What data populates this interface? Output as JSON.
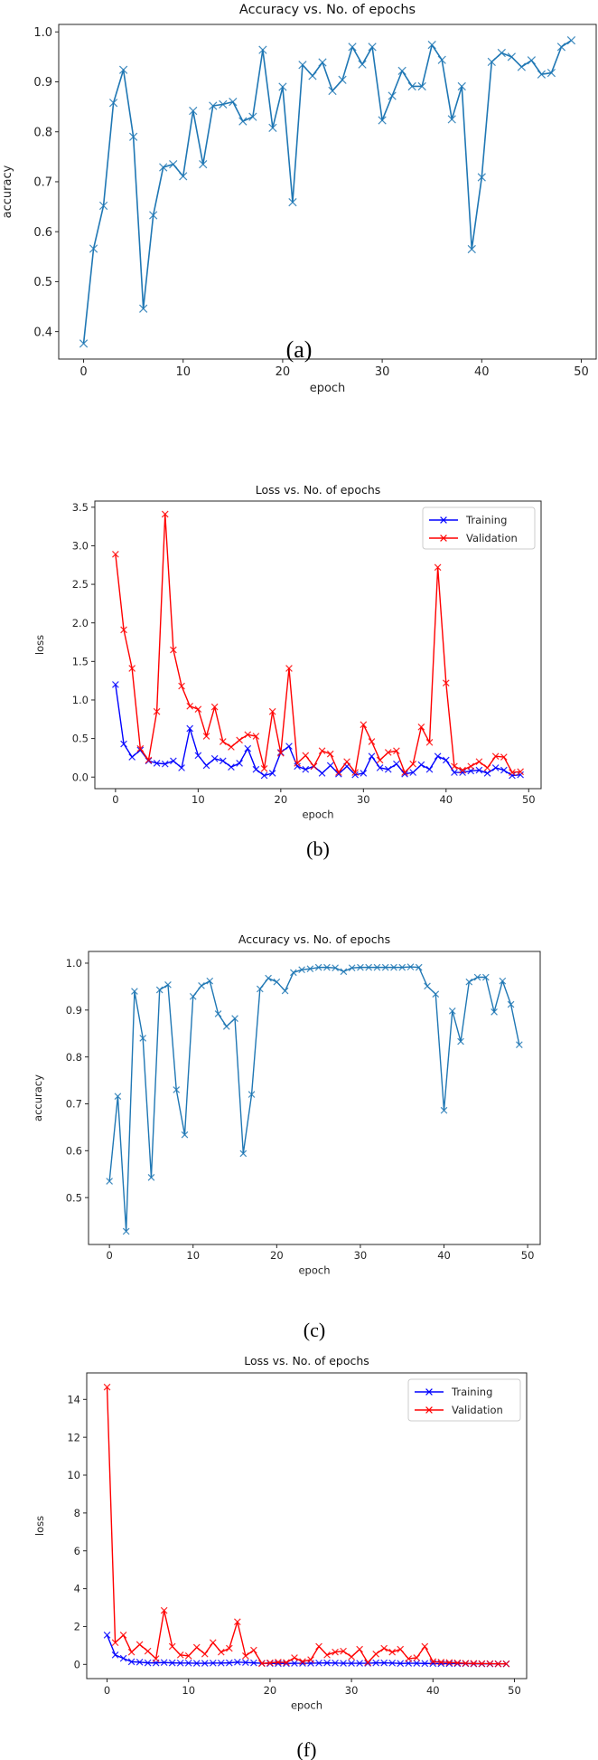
{
  "figure": {
    "captions": [
      "(a)",
      "(b)",
      "(c)",
      "(f)"
    ]
  },
  "chart_data": [
    {
      "id": "a",
      "type": "line",
      "title": "Accuracy vs. No. of epochs",
      "xlabel": "epoch",
      "ylabel": "accuracy",
      "caption": "(a)",
      "xlim": [
        -2.5,
        51.5
      ],
      "ylim": [
        0.345,
        1.015
      ],
      "xticks": [
        0,
        10,
        20,
        30,
        40,
        50
      ],
      "yticks": [
        0.4,
        0.5,
        0.6,
        0.7,
        0.8,
        0.9,
        1.0
      ],
      "ytick_labels": [
        "0.4",
        "0.5",
        "0.6",
        "0.7",
        "0.8",
        "0.9",
        "1.0"
      ],
      "grid": false,
      "legend": null,
      "series": [
        {
          "name": "accuracy",
          "color": "#1f77b4",
          "marker": "x",
          "x": [
            0,
            1,
            2,
            3,
            4,
            5,
            6,
            7,
            8,
            9,
            10,
            11,
            12,
            13,
            14,
            15,
            16,
            17,
            18,
            19,
            20,
            21,
            22,
            23,
            24,
            25,
            26,
            27,
            28,
            29,
            30,
            31,
            32,
            33,
            34,
            35,
            36,
            37,
            38,
            39,
            40,
            41,
            42,
            43,
            44,
            45,
            46,
            47,
            48,
            49
          ],
          "values": [
            0.376,
            0.566,
            0.652,
            0.858,
            0.924,
            0.79,
            0.446,
            0.633,
            0.729,
            0.735,
            0.711,
            0.842,
            0.735,
            0.852,
            0.855,
            0.86,
            0.821,
            0.83,
            0.964,
            0.808,
            0.89,
            0.659,
            0.934,
            0.912,
            0.939,
            0.882,
            0.904,
            0.97,
            0.935,
            0.97,
            0.823,
            0.872,
            0.922,
            0.891,
            0.891,
            0.974,
            0.944,
            0.825,
            0.891,
            0.565,
            0.709,
            0.94,
            0.958,
            0.95,
            0.93,
            0.943,
            0.915,
            0.918,
            0.97,
            0.983
          ]
        }
      ]
    },
    {
      "id": "b",
      "type": "line",
      "title": "Loss vs. No. of epochs",
      "xlabel": "epoch",
      "ylabel": "loss",
      "caption": "(b)",
      "xlim": [
        -2.5,
        51.5
      ],
      "ylim": [
        -0.15,
        3.58
      ],
      "xticks": [
        0,
        10,
        20,
        30,
        40,
        50
      ],
      "yticks": [
        0.0,
        0.5,
        1.0,
        1.5,
        2.0,
        2.5,
        3.0,
        3.5
      ],
      "ytick_labels": [
        "0.0",
        "0.5",
        "1.0",
        "1.5",
        "2.0",
        "2.5",
        "3.0",
        "3.5"
      ],
      "grid": false,
      "legend": "top-right",
      "series": [
        {
          "name": "Training",
          "color": "#0000ff",
          "marker": "x",
          "x": [
            0,
            1,
            2,
            3,
            4,
            5,
            6,
            7,
            8,
            9,
            10,
            11,
            12,
            13,
            14,
            15,
            16,
            17,
            18,
            19,
            20,
            21,
            22,
            23,
            24,
            25,
            26,
            27,
            28,
            29,
            30,
            31,
            32,
            33,
            34,
            35,
            36,
            37,
            38,
            39,
            40,
            41,
            42,
            43,
            44,
            45,
            46,
            47,
            48,
            49
          ],
          "values": [
            1.2,
            0.43,
            0.26,
            0.35,
            0.21,
            0.18,
            0.17,
            0.21,
            0.12,
            0.63,
            0.28,
            0.15,
            0.24,
            0.21,
            0.13,
            0.18,
            0.37,
            0.1,
            0.02,
            0.05,
            0.32,
            0.4,
            0.14,
            0.1,
            0.14,
            0.05,
            0.15,
            0.04,
            0.14,
            0.03,
            0.05,
            0.27,
            0.12,
            0.1,
            0.17,
            0.04,
            0.06,
            0.16,
            0.1,
            0.27,
            0.22,
            0.06,
            0.06,
            0.08,
            0.09,
            0.05,
            0.12,
            0.09,
            0.02,
            0.03
          ]
        },
        {
          "name": "Validation",
          "color": "#ff0000",
          "marker": "x",
          "x": [
            0,
            1,
            2,
            3,
            4,
            5,
            6,
            7,
            8,
            9,
            10,
            11,
            12,
            13,
            14,
            15,
            16,
            17,
            18,
            19,
            20,
            21,
            22,
            23,
            24,
            25,
            26,
            27,
            28,
            29,
            30,
            31,
            32,
            33,
            34,
            35,
            36,
            37,
            38,
            39,
            40,
            41,
            42,
            43,
            44,
            45,
            46,
            47,
            48,
            49
          ],
          "values": [
            2.89,
            1.91,
            1.41,
            0.37,
            0.22,
            0.85,
            3.41,
            1.65,
            1.18,
            0.92,
            0.88,
            0.53,
            0.91,
            0.46,
            0.39,
            0.48,
            0.55,
            0.53,
            0.11,
            0.85,
            0.31,
            1.41,
            0.18,
            0.28,
            0.14,
            0.34,
            0.3,
            0.06,
            0.2,
            0.06,
            0.68,
            0.46,
            0.22,
            0.32,
            0.34,
            0.06,
            0.17,
            0.65,
            0.45,
            2.72,
            1.22,
            0.14,
            0.09,
            0.14,
            0.2,
            0.12,
            0.27,
            0.26,
            0.06,
            0.07
          ]
        }
      ]
    },
    {
      "id": "c",
      "type": "line",
      "title": "Accuracy vs. No. of epochs",
      "xlabel": "epoch",
      "ylabel": "accuracy",
      "caption": "(c)",
      "xlim": [
        -2.5,
        51.5
      ],
      "ylim": [
        0.4,
        1.025
      ],
      "xticks": [
        0,
        10,
        20,
        30,
        40,
        50
      ],
      "yticks": [
        0.5,
        0.6,
        0.7,
        0.8,
        0.9,
        1.0
      ],
      "ytick_labels": [
        "0.5",
        "0.6",
        "0.7",
        "0.8",
        "0.9",
        "1.0"
      ],
      "grid": false,
      "legend": null,
      "series": [
        {
          "name": "accuracy",
          "color": "#1f77b4",
          "marker": "x",
          "x": [
            0,
            1,
            2,
            3,
            4,
            5,
            6,
            7,
            8,
            9,
            10,
            11,
            12,
            13,
            14,
            15,
            16,
            17,
            18,
            19,
            20,
            21,
            22,
            23,
            24,
            25,
            26,
            27,
            28,
            29,
            30,
            31,
            32,
            33,
            34,
            35,
            36,
            37,
            38,
            39,
            40,
            41,
            42,
            43,
            44,
            45,
            46,
            47,
            48,
            49
          ],
          "values": [
            0.535,
            0.716,
            0.428,
            0.94,
            0.84,
            0.543,
            0.943,
            0.954,
            0.73,
            0.634,
            0.929,
            0.952,
            0.962,
            0.892,
            0.865,
            0.882,
            0.594,
            0.72,
            0.945,
            0.968,
            0.96,
            0.941,
            0.98,
            0.986,
            0.988,
            0.991,
            0.991,
            0.99,
            0.982,
            0.99,
            0.991,
            0.991,
            0.991,
            0.991,
            0.991,
            0.991,
            0.992,
            0.991,
            0.951,
            0.934,
            0.686,
            0.898,
            0.833,
            0.96,
            0.97,
            0.97,
            0.896,
            0.962,
            0.912,
            0.826
          ]
        }
      ]
    },
    {
      "id": "f",
      "type": "line",
      "title": "Loss vs. No. of epochs",
      "xlabel": "epoch",
      "ylabel": "loss",
      "caption": "(f)",
      "xlim": [
        -2.5,
        51.5
      ],
      "ylim": [
        -0.75,
        15.4
      ],
      "xticks": [
        0,
        10,
        20,
        30,
        40,
        50
      ],
      "yticks": [
        0,
        2,
        4,
        6,
        8,
        10,
        12,
        14
      ],
      "ytick_labels": [
        "0",
        "2",
        "4",
        "6",
        "8",
        "10",
        "12",
        "14"
      ],
      "grid": false,
      "legend": "top-right",
      "series": [
        {
          "name": "Training",
          "color": "#0000ff",
          "marker": "x",
          "x": [
            0,
            1,
            2,
            3,
            4,
            5,
            6,
            7,
            8,
            9,
            10,
            11,
            12,
            13,
            14,
            15,
            16,
            17,
            18,
            19,
            20,
            21,
            22,
            23,
            24,
            25,
            26,
            27,
            28,
            29,
            30,
            31,
            32,
            33,
            34,
            35,
            36,
            37,
            38,
            39,
            40,
            41,
            42,
            43,
            44,
            45,
            46,
            47,
            48,
            49
          ],
          "values": [
            1.55,
            0.5,
            0.32,
            0.14,
            0.12,
            0.08,
            0.08,
            0.1,
            0.08,
            0.07,
            0.07,
            0.06,
            0.06,
            0.07,
            0.07,
            0.08,
            0.12,
            0.1,
            0.08,
            0.06,
            0.05,
            0.05,
            0.05,
            0.06,
            0.06,
            0.06,
            0.07,
            0.08,
            0.07,
            0.06,
            0.06,
            0.06,
            0.06,
            0.08,
            0.08,
            0.07,
            0.05,
            0.06,
            0.06,
            0.05,
            0.05,
            0.04,
            0.04,
            0.04,
            0.04,
            0.03,
            0.03,
            0.03,
            0.03,
            0.03
          ]
        },
        {
          "name": "Validation",
          "color": "#ff0000",
          "marker": "x",
          "x": [
            0,
            1,
            2,
            3,
            4,
            5,
            6,
            7,
            8,
            9,
            10,
            11,
            12,
            13,
            14,
            15,
            16,
            17,
            18,
            19,
            20,
            21,
            22,
            23,
            24,
            25,
            26,
            27,
            28,
            29,
            30,
            31,
            32,
            33,
            34,
            35,
            36,
            37,
            38,
            39,
            40,
            41,
            42,
            43,
            44,
            45,
            46,
            47,
            48,
            49
          ],
          "values": [
            14.65,
            1.15,
            1.55,
            0.65,
            1.05,
            0.7,
            0.3,
            2.85,
            0.95,
            0.5,
            0.45,
            0.9,
            0.55,
            1.15,
            0.65,
            0.85,
            2.25,
            0.45,
            0.75,
            0.05,
            0.08,
            0.12,
            0.1,
            0.35,
            0.15,
            0.25,
            0.95,
            0.5,
            0.65,
            0.7,
            0.4,
            0.8,
            0.1,
            0.55,
            0.85,
            0.65,
            0.8,
            0.3,
            0.35,
            0.95,
            0.15,
            0.12,
            0.1,
            0.08,
            0.06,
            0.05,
            0.04,
            0.04,
            0.03,
            0.03
          ]
        }
      ]
    }
  ]
}
